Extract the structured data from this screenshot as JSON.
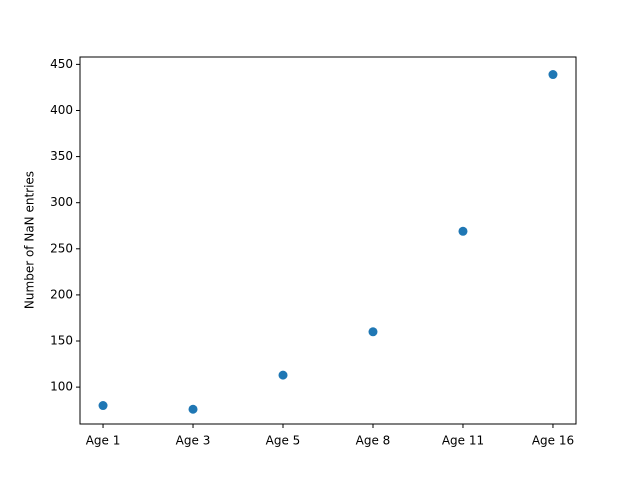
{
  "chart_data": {
    "type": "scatter",
    "y_label": "Number of NaN entries",
    "categories": [
      "Age 1",
      "Age 3",
      "Age 5",
      "Age 8",
      "Age 11",
      "Age 16"
    ],
    "values": [
      80,
      76,
      113,
      160,
      269,
      439
    ],
    "color": "#1f77b4",
    "ylim": [
      60,
      458
    ],
    "yticks": [
      100,
      150,
      200,
      250,
      300,
      350,
      400,
      450
    ],
    "grid": false
  }
}
